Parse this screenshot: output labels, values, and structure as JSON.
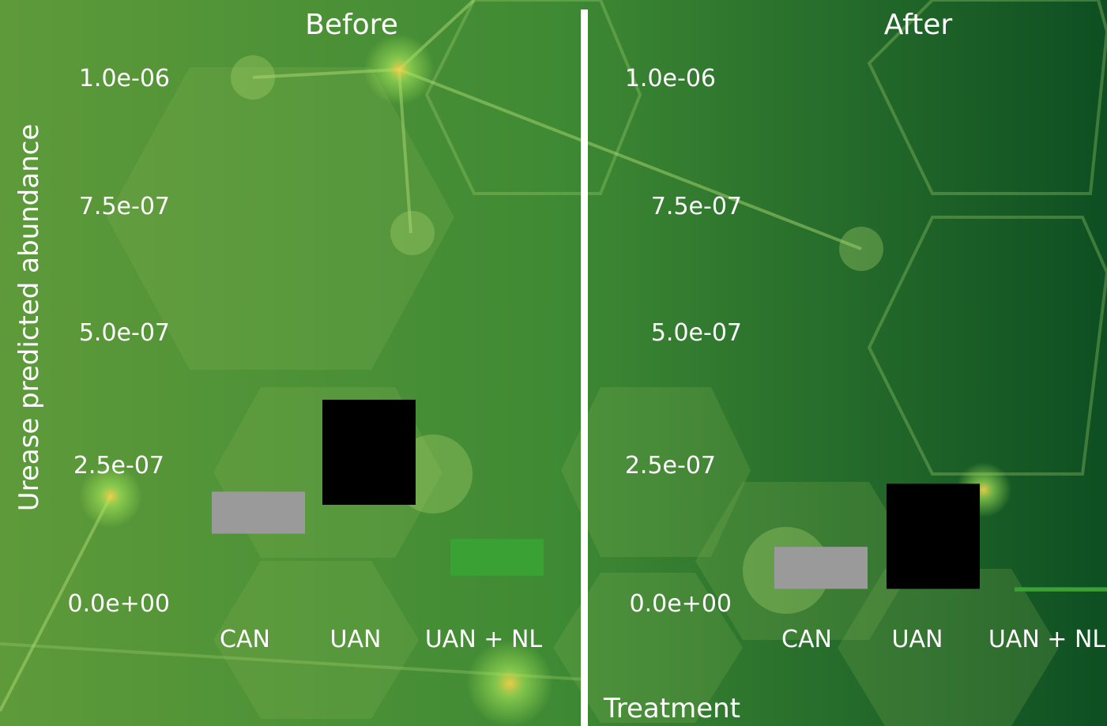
{
  "chart_data": {
    "type": "bar",
    "ylabel": "Urease predicted abundance",
    "xlabel": "Treatment",
    "y_ticks": [
      "0.0e+00",
      "2.5e-07",
      "5.0e-07",
      "7.5e-07",
      "1.0e-06"
    ],
    "categories": [
      "CAN",
      "UAN",
      "UAN + NL"
    ],
    "colors": {
      "CAN": "#9a9a9a",
      "UAN": "#000000",
      "UAN + NL": "#3aa135"
    },
    "panels": [
      {
        "title": "Before",
        "bars": [
          {
            "category": "CAN",
            "low": 1.3e-07,
            "high": 2.1e-07
          },
          {
            "category": "UAN",
            "low": 1.85e-07,
            "high": 3.85e-07
          },
          {
            "category": "UAN + NL",
            "low": 5e-08,
            "high": 1.2e-07
          }
        ]
      },
      {
        "title": "After",
        "bars": [
          {
            "category": "CAN",
            "low": 2.5e-08,
            "high": 1.05e-07
          },
          {
            "category": "UAN",
            "low": 2.5e-08,
            "high": 2.25e-07
          },
          {
            "category": "UAN + NL",
            "low": 2e-08,
            "high": 2.8e-08
          }
        ]
      }
    ]
  }
}
